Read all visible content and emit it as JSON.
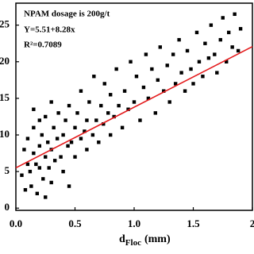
{
  "chart_data": {
    "type": "scatter",
    "annotations": [
      "NPAM dosage is 200g/t",
      "Y=5.51+8.28x",
      "R²=0.7089"
    ],
    "xlabel": "d",
    "xlabel_sub": "Floc",
    "xlabel_unit": "(mm)",
    "series": [
      {
        "color": "#000000",
        "x": [
          0.05,
          0.07,
          0.08,
          0.1,
          0.1,
          0.12,
          0.13,
          0.15,
          0.15,
          0.17,
          0.18,
          0.2,
          0.2,
          0.22,
          0.23,
          0.25,
          0.25,
          0.27,
          0.28,
          0.3,
          0.3,
          0.32,
          0.33,
          0.35,
          0.36,
          0.38,
          0.4,
          0.4,
          0.42,
          0.44,
          0.45,
          0.47,
          0.5,
          0.5,
          0.52,
          0.55,
          0.55,
          0.58,
          0.6,
          0.6,
          0.62,
          0.65,
          0.66,
          0.68,
          0.7,
          0.72,
          0.74,
          0.75,
          0.78,
          0.8,
          0.8,
          0.83,
          0.85,
          0.87,
          0.9,
          0.92,
          0.95,
          0.97,
          1.0,
          1.02,
          1.05,
          1.08,
          1.1,
          1.12,
          1.15,
          1.18,
          1.2,
          1.22,
          1.25,
          1.28,
          1.3,
          1.33,
          1.35,
          1.38,
          1.4,
          1.43,
          1.45,
          1.48,
          1.5,
          1.53,
          1.55,
          1.58,
          1.6,
          1.63,
          1.65,
          1.68,
          1.7,
          1.73,
          1.75,
          1.78,
          1.8,
          1.83,
          1.85,
          1.88,
          1.9,
          0.15,
          0.25,
          0.3,
          0.2,
          0.45
        ],
        "values": [
          4.5,
          8,
          2.5,
          6,
          9.5,
          5,
          3,
          7.5,
          11,
          6,
          2,
          8.5,
          5.5,
          10,
          4,
          7,
          12.5,
          9,
          5.5,
          8,
          3.5,
          11,
          6.5,
          9.5,
          13,
          7,
          10,
          5,
          12,
          8.5,
          14,
          9,
          11,
          7,
          13,
          9.5,
          16,
          10.5,
          12,
          8,
          14.5,
          10,
          18,
          12,
          9,
          14,
          11.5,
          17,
          13,
          10,
          15.5,
          12.5,
          19,
          14,
          11,
          16,
          13.5,
          20,
          14.5,
          18,
          12,
          16.5,
          21,
          15,
          19,
          13,
          17.5,
          22,
          16,
          19.5,
          14.5,
          21,
          17,
          23,
          18.5,
          16,
          21.5,
          19,
          17,
          24,
          20,
          18,
          22.5,
          20.5,
          25,
          21,
          18.5,
          23,
          26,
          20,
          24,
          22,
          26.5,
          21.5,
          24.5,
          13.5,
          1.5,
          14.5,
          12,
          3
        ]
      }
    ],
    "trendline": {
      "color": "#e41a1c",
      "x": [
        0,
        2
      ],
      "values": [
        5.51,
        22.07
      ]
    },
    "xlim": [
      0,
      2
    ],
    "ylim": [
      -0.3,
      28
    ],
    "xticks": [
      {
        "value": 0,
        "label": "0.0"
      },
      0.5,
      {
        "value": 1,
        "label": "1.0"
      },
      1.5,
      2
    ],
    "yticks": [
      0,
      5,
      10,
      15,
      20,
      25
    ]
  }
}
